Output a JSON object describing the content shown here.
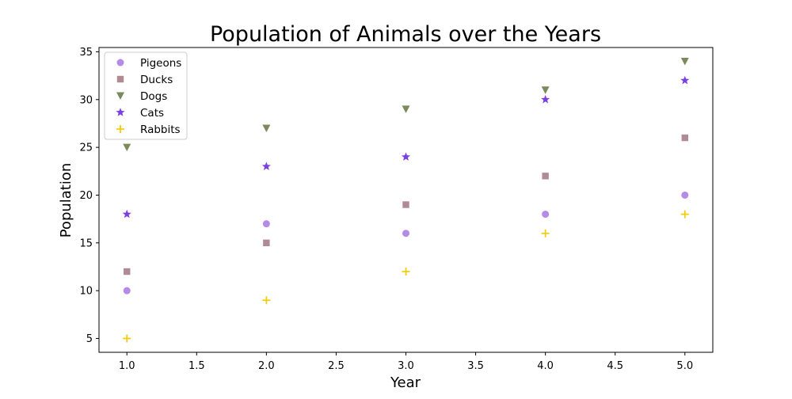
{
  "chart_data": {
    "type": "scatter",
    "title": "Population of Animals over the Years",
    "xlabel": "Year",
    "ylabel": "Population",
    "xlim": [
      0.8,
      5.2
    ],
    "ylim": [
      3.55,
      35.45
    ],
    "xticks": [
      1.0,
      1.5,
      2.0,
      2.5,
      3.0,
      3.5,
      4.0,
      4.5,
      5.0
    ],
    "xtick_labels": [
      "1.0",
      "1.5",
      "2.0",
      "2.5",
      "3.0",
      "3.5",
      "4.0",
      "4.5",
      "5.0"
    ],
    "yticks": [
      5,
      10,
      15,
      20,
      25,
      30,
      35
    ],
    "ytick_labels": [
      "5",
      "10",
      "15",
      "20",
      "25",
      "30",
      "35"
    ],
    "grid": false,
    "legend_position": "top-left",
    "x": [
      1,
      2,
      3,
      4,
      5
    ],
    "series": [
      {
        "name": "Pigeons",
        "marker": "circle",
        "color": "#b48be6",
        "values": [
          10,
          17,
          16,
          18,
          20
        ]
      },
      {
        "name": "Ducks",
        "marker": "square",
        "color": "#b08a94",
        "values": [
          12,
          15,
          19,
          22,
          26
        ]
      },
      {
        "name": "Dogs",
        "marker": "triangle-down",
        "color": "#7a8a5c",
        "values": [
          25,
          27,
          29,
          31,
          34
        ]
      },
      {
        "name": "Cats",
        "marker": "star",
        "color": "#7b3fe4",
        "values": [
          18,
          23,
          24,
          30,
          32
        ]
      },
      {
        "name": "Rabbits",
        "marker": "plus",
        "color": "#f2cc12",
        "values": [
          5,
          9,
          12,
          16,
          18
        ]
      }
    ]
  }
}
